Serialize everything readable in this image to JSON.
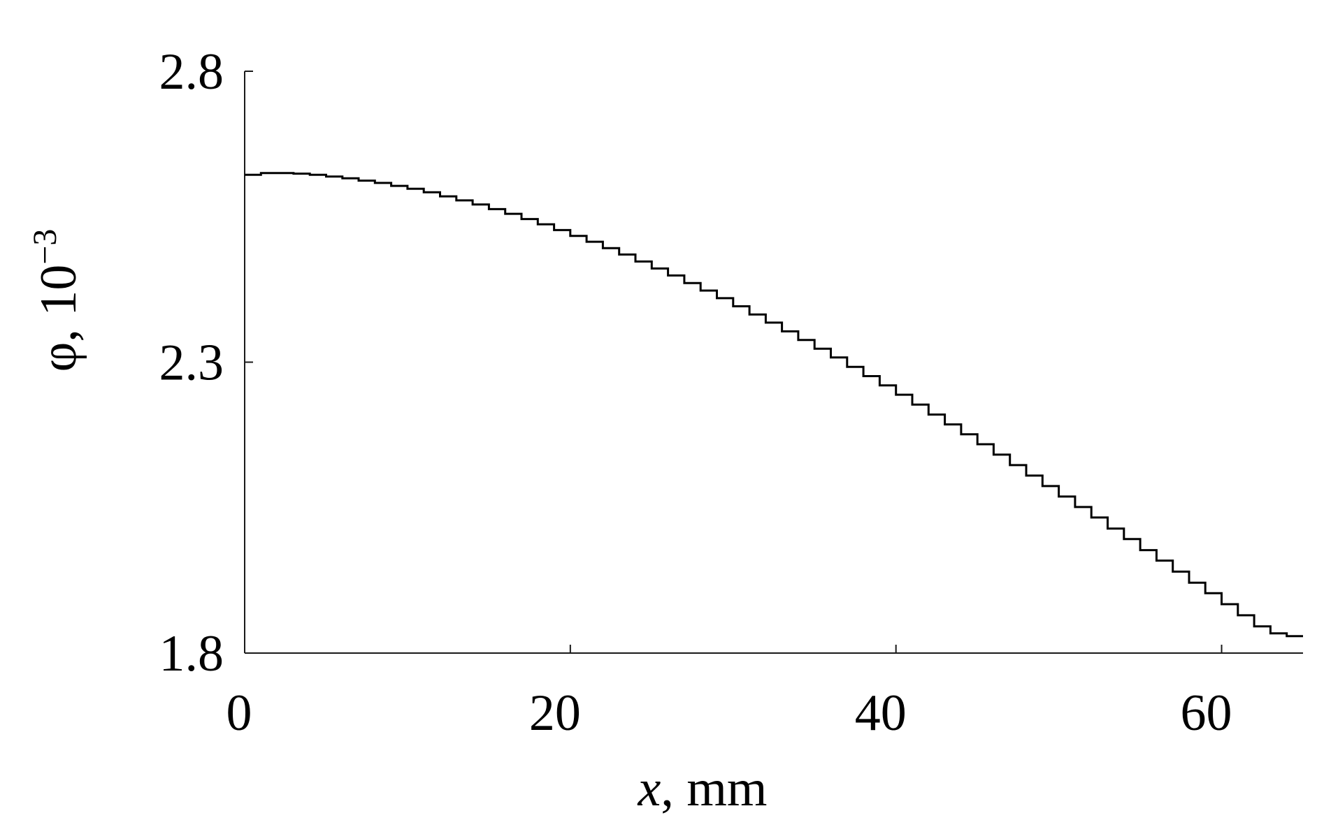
{
  "chart_data": {
    "type": "line",
    "title": "",
    "xlabel": "x",
    "xlabel_unit": ", mm",
    "ylabel": "φ, 10",
    "ylabel_exponent": "−3",
    "xlim": [
      0,
      65
    ],
    "ylim": [
      1.8,
      2.8
    ],
    "x_ticks": [
      0,
      20,
      40,
      60
    ],
    "x_tick_labels": [
      "0",
      "20",
      "40",
      "60"
    ],
    "y_ticks": [
      1.8,
      2.3,
      2.8
    ],
    "y_tick_labels": [
      "1.8",
      "2.3",
      "2.8"
    ],
    "grid": false,
    "line_style": "stepped",
    "series": [
      {
        "x": [
          0,
          1,
          2,
          3,
          4,
          5,
          6,
          7,
          8,
          9,
          10,
          11,
          12,
          13,
          14,
          15,
          16,
          17,
          18,
          19,
          20,
          21,
          22,
          23,
          24,
          25,
          26,
          27,
          28,
          29,
          30,
          31,
          32,
          33,
          34,
          35,
          36,
          37,
          38,
          39,
          40,
          41,
          42,
          43,
          44,
          45,
          46,
          47,
          48,
          49,
          50,
          51,
          52,
          53,
          54,
          55,
          56,
          57,
          58,
          59,
          60,
          61,
          62,
          63,
          64
        ],
        "values": [
          2.622,
          2.625,
          2.625,
          2.624,
          2.622,
          2.619,
          2.616,
          2.612,
          2.608,
          2.603,
          2.598,
          2.592,
          2.585,
          2.578,
          2.571,
          2.563,
          2.555,
          2.546,
          2.537,
          2.527,
          2.517,
          2.507,
          2.496,
          2.485,
          2.473,
          2.461,
          2.449,
          2.436,
          2.423,
          2.41,
          2.396,
          2.382,
          2.368,
          2.353,
          2.338,
          2.323,
          2.308,
          2.292,
          2.276,
          2.26,
          2.244,
          2.227,
          2.21,
          2.193,
          2.176,
          2.159,
          2.141,
          2.123,
          2.105,
          2.087,
          2.069,
          2.051,
          2.033,
          2.014,
          1.996,
          1.977,
          1.959,
          1.94,
          1.921,
          1.903,
          1.884,
          1.865,
          1.846,
          1.834,
          1.829
        ]
      }
    ]
  }
}
